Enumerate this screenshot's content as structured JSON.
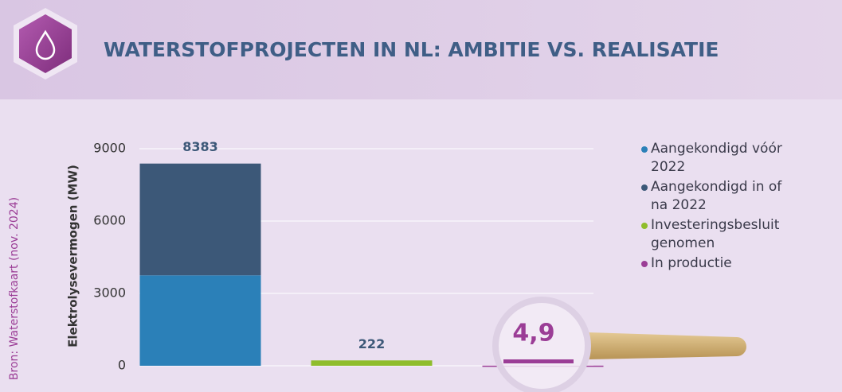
{
  "chart_data": {
    "type": "stacked-bar",
    "title": "WATERSTOFPROJECTEN IN NL: AMBITIE VS. REALISATIE",
    "source": "Bron: Waterstofkaart (nov. 2024)",
    "y_label": "Elektrolysevermogen (MW)",
    "categories": [
      null,
      null,
      null
    ],
    "series": [
      {
        "name": "Aangekondigd vóór 2022",
        "color": "#2b80b8",
        "values": [
          3750,
          null,
          null
        ]
      },
      {
        "name": "Aangekondigd in of na 2022",
        "color": "#3c5878",
        "values": [
          4633,
          null,
          null
        ]
      },
      {
        "name": "Investeringsbesluit genomen",
        "color": "#8fbd2c",
        "values": [
          null,
          222,
          null
        ]
      },
      {
        "name": "In productie",
        "color": "#9b3d96",
        "values": [
          null,
          null,
          4.9
        ]
      }
    ],
    "totals": [
      8383,
      222,
      {
        "value": 4.9,
        "label": "4,9"
      }
    ],
    "ylim": [
      0,
      9000
    ],
    "yticks": [
      0,
      3000,
      6000,
      9000
    ],
    "grid": true
  }
}
